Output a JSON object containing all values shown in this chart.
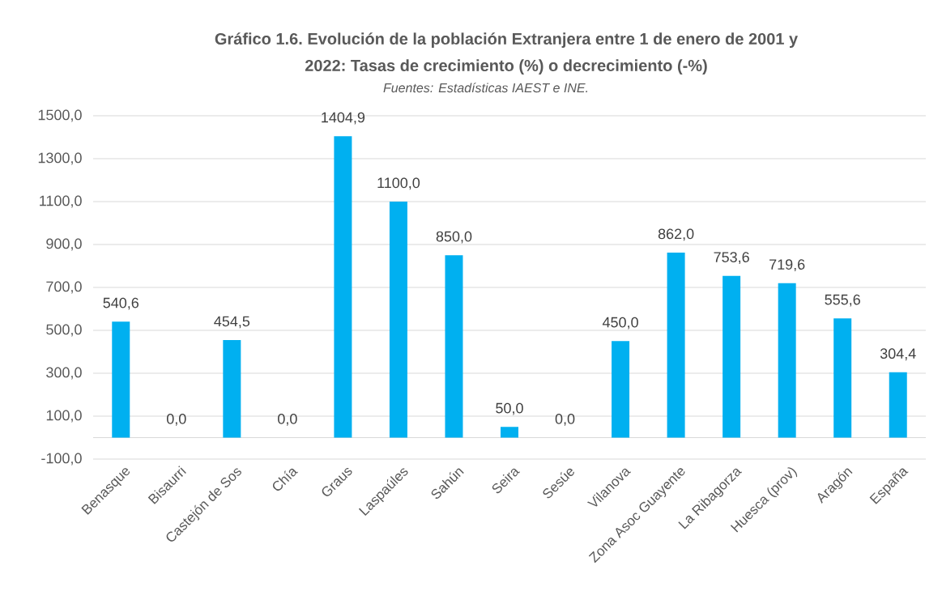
{
  "chart_data": {
    "type": "bar",
    "title": "Gráfico 1.6. Evolución de la población Extranjera entre 1 de enero de 2001 y 2022: Tasas de crecimiento (%) o decrecimiento (-%)",
    "annotations": [
      "Fuentes: Estadísticas IAEST e INE."
    ],
    "categories": [
      "Benasque",
      "Bisaurri",
      "Castejón de Sos",
      "Chía",
      "Graus",
      "Laspaúles",
      "Sahún",
      "Seira",
      "Sesúe",
      "Vilanova",
      "Zona Asoc Guayente",
      "La Ribagorza",
      "Huesca (prov)",
      "Aragón",
      "España"
    ],
    "values": [
      540.6,
      0,
      454.5,
      0,
      1404.9,
      1100,
      850,
      50,
      0,
      450,
      862,
      753.6,
      719.6,
      555.6,
      304.4
    ],
    "value_labels": [
      "540,6",
      "0,0",
      "454,5",
      "0,0",
      "1404,9",
      "1100,0",
      "850,0",
      "50,0",
      "0,0",
      "450,0",
      "862,0",
      "753,6",
      "719,6",
      "555,6",
      "304,4"
    ],
    "color": "#00b0f0",
    "ylim": [
      -100,
      1500
    ],
    "yticks": [
      {
        "value": -100,
        "label": "-100,0"
      },
      {
        "value": 100,
        "label": "100,0"
      },
      {
        "value": 300,
        "label": "300,0"
      },
      {
        "value": 500,
        "label": "500,0"
      },
      {
        "value": 700,
        "label": "700,0"
      },
      {
        "value": 900,
        "label": "900,0"
      },
      {
        "value": 1100,
        "label": "1100,0"
      },
      {
        "value": 1300,
        "label": "1300,0"
      },
      {
        "value": 1500,
        "label": "1500,0"
      }
    ],
    "grid": "y",
    "ref_lines": [
      {
        "axis": "y",
        "value": 0,
        "color": "#d9d9d9"
      }
    ]
  }
}
